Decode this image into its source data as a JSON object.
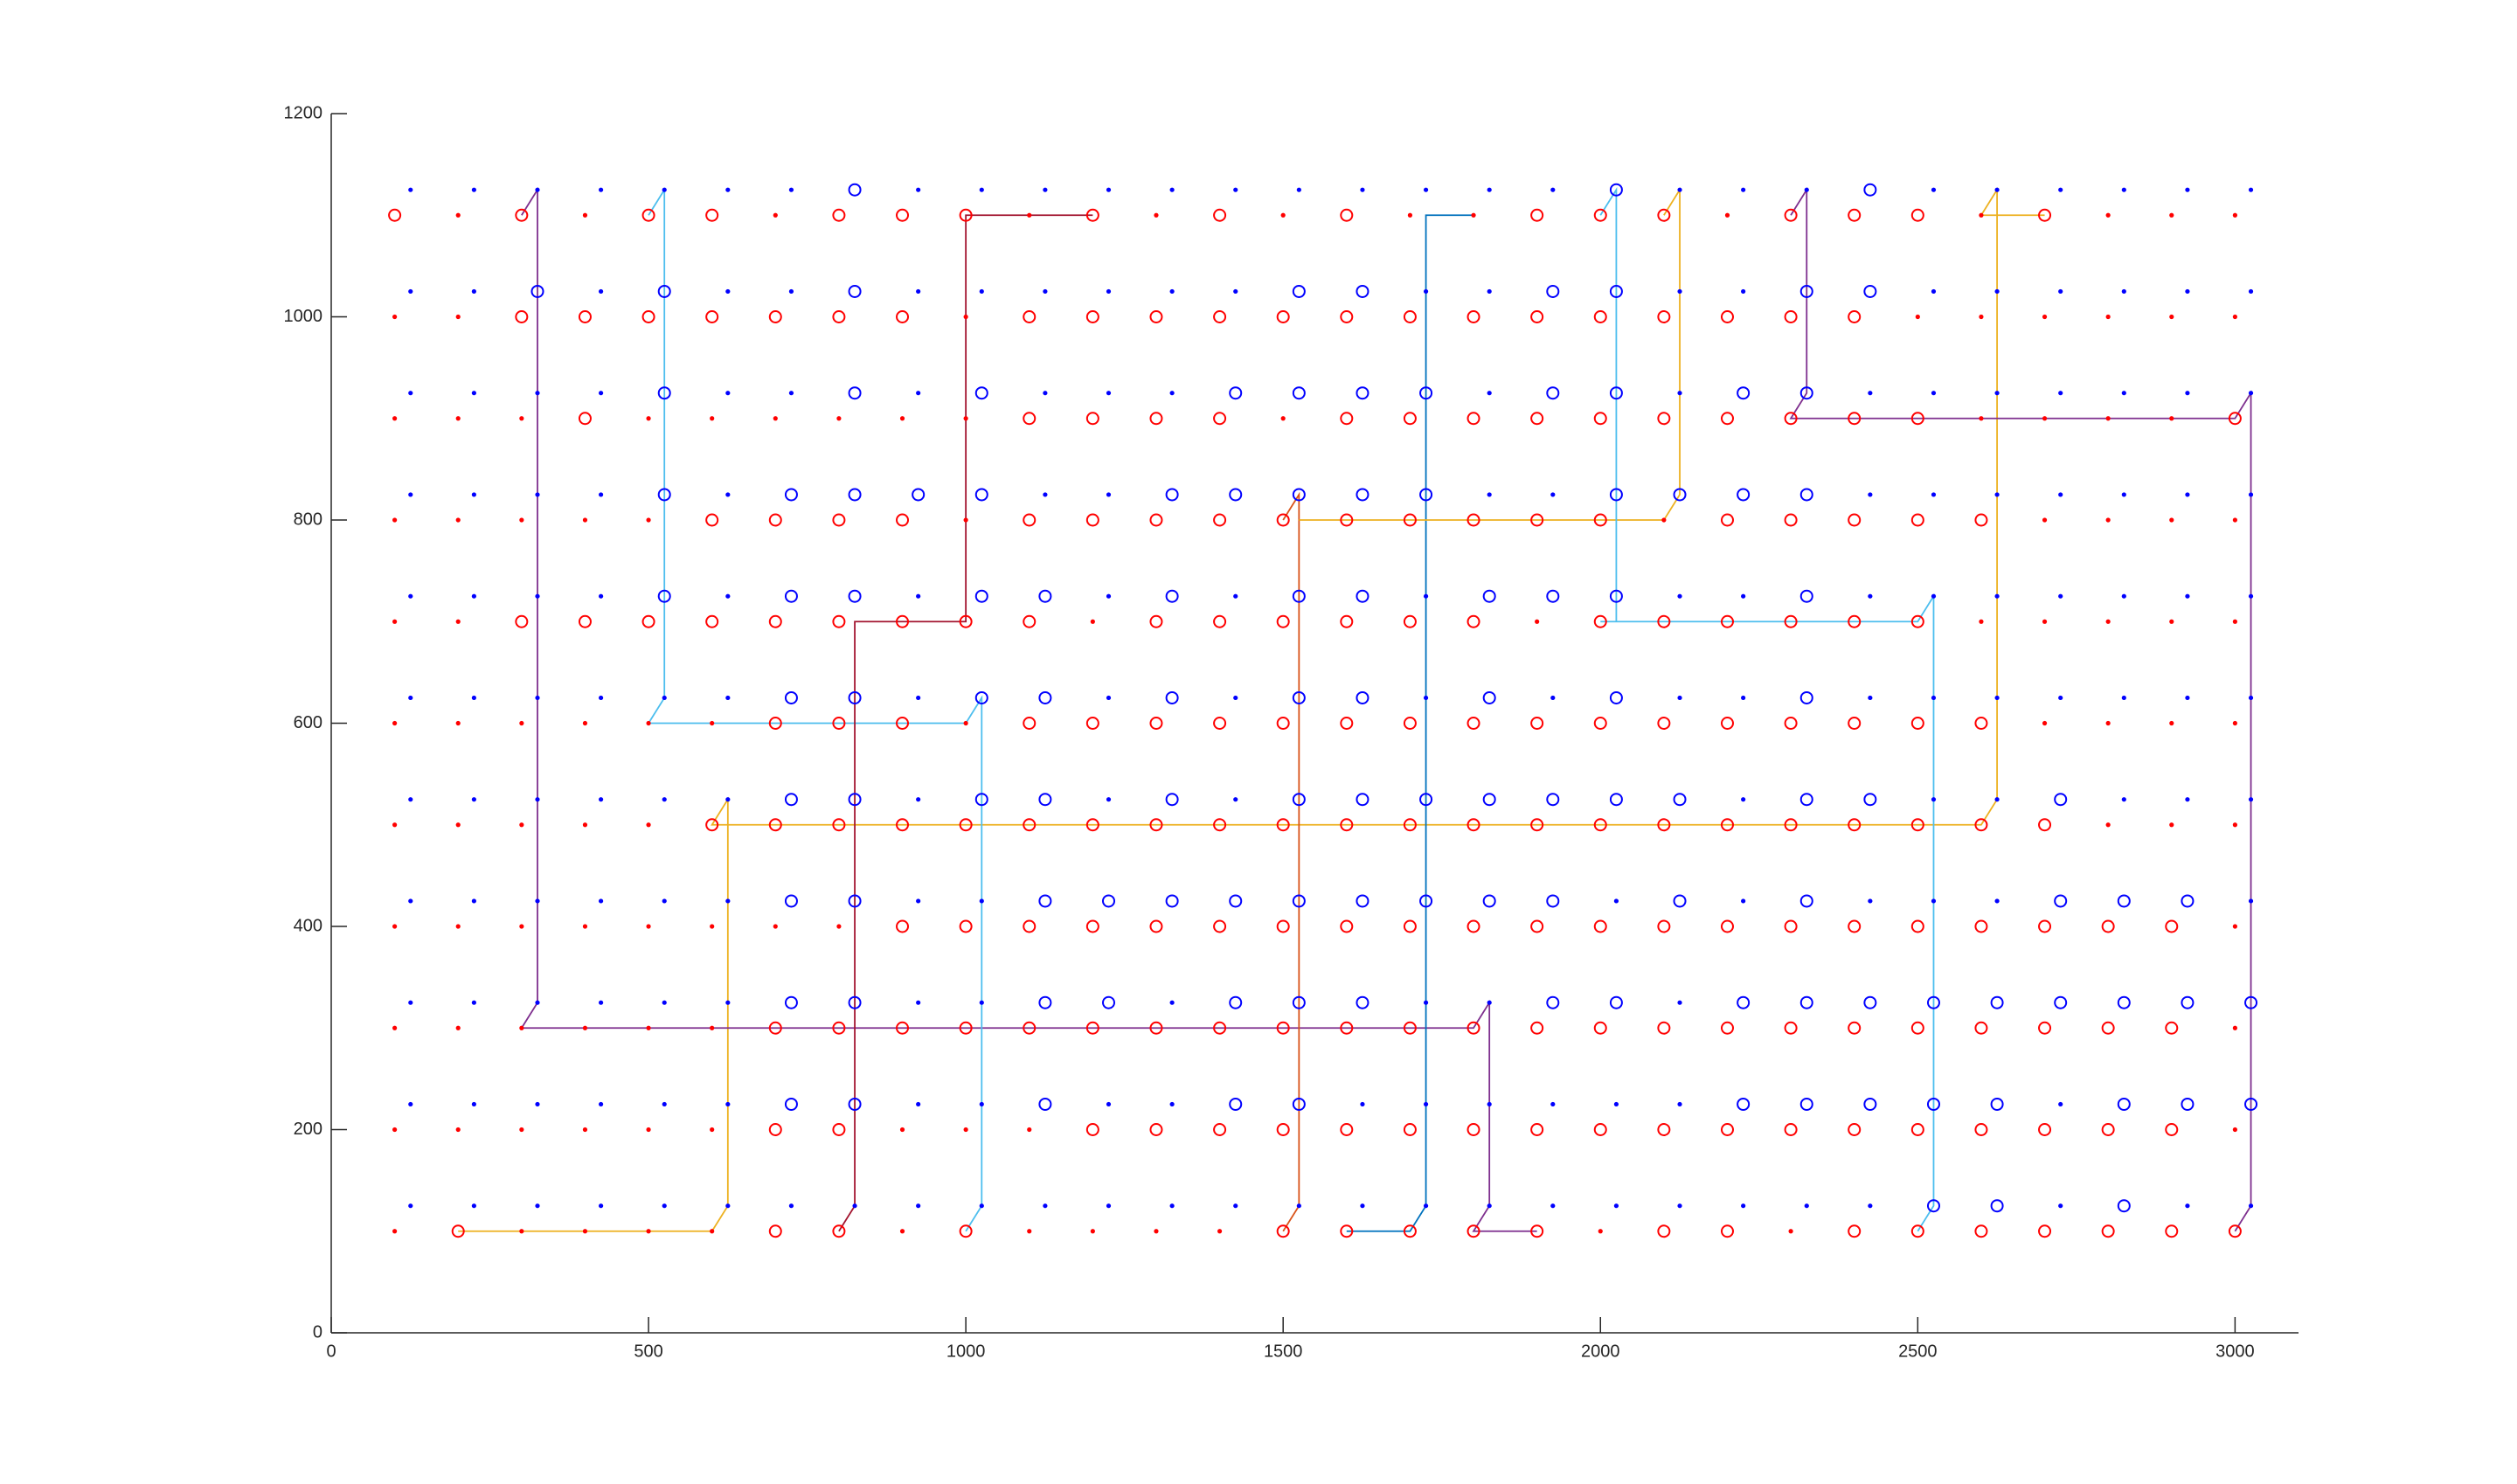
{
  "chart_data": {
    "type": "scatter",
    "xlim": [
      0,
      3100
    ],
    "ylim": [
      0,
      1200
    ],
    "xticks": [
      0,
      500,
      1000,
      1500,
      2000,
      2500,
      3000
    ],
    "yticks": [
      0,
      200,
      400,
      600,
      800,
      1000,
      1200
    ],
    "series": [
      {
        "color": "#ff0000",
        "marker": "o",
        "y": 1100,
        "x": [
          100,
          300,
          500,
          600,
          800,
          900,
          1000,
          1200,
          1400,
          1600,
          1900,
          2000,
          2100,
          2300,
          2400,
          2500,
          2700
        ]
      },
      {
        "color": "#ff0000",
        "marker": ".",
        "y": 1100,
        "x": [
          200,
          400,
          700,
          1100,
          1300,
          1500,
          1700,
          1800,
          2200,
          2600,
          2800,
          2900,
          3000
        ]
      },
      {
        "color": "#ff0000",
        "marker": "o",
        "y": 1000,
        "x": [
          300,
          400,
          500,
          600,
          700,
          800,
          900,
          1100,
          1200,
          1300,
          1400,
          1500,
          1600,
          1700,
          1800,
          1900,
          2000,
          2100,
          2200,
          2300,
          2400
        ]
      },
      {
        "color": "#ff0000",
        "marker": ".",
        "y": 1000,
        "x": [
          100,
          200,
          1000,
          2500,
          2600,
          2700,
          2800,
          2900,
          3000
        ]
      },
      {
        "color": "#ff0000",
        "marker": "o",
        "y": 900,
        "x": [
          400,
          1100,
          1200,
          1300,
          1400,
          1600,
          1700,
          1800,
          1900,
          2000,
          2100,
          2200,
          2300,
          2400,
          2500,
          3000
        ]
      },
      {
        "color": "#ff0000",
        "marker": ".",
        "y": 900,
        "x": [
          100,
          200,
          300,
          500,
          600,
          700,
          800,
          900,
          1000,
          1500,
          2600,
          2700,
          2800,
          2900
        ]
      },
      {
        "color": "#ff0000",
        "marker": "o",
        "y": 800,
        "x": [
          600,
          700,
          800,
          900,
          1100,
          1200,
          1300,
          1400,
          1500,
          1600,
          1700,
          1800,
          1900,
          2000,
          2200,
          2300,
          2400,
          2500,
          2600
        ]
      },
      {
        "color": "#ff0000",
        "marker": ".",
        "y": 800,
        "x": [
          100,
          200,
          300,
          400,
          500,
          1000,
          2100,
          2700,
          2800,
          2900,
          3000
        ]
      },
      {
        "color": "#ff0000",
        "marker": "o",
        "y": 700,
        "x": [
          300,
          400,
          500,
          600,
          700,
          800,
          900,
          1000,
          1100,
          1300,
          1400,
          1500,
          1600,
          1700,
          1800,
          2000,
          2100,
          2200,
          2300,
          2400,
          2500
        ]
      },
      {
        "color": "#ff0000",
        "marker": ".",
        "y": 700,
        "x": [
          100,
          200,
          1200,
          1900,
          2600,
          2700,
          2800,
          2900,
          3000
        ]
      },
      {
        "color": "#ff0000",
        "marker": "o",
        "y": 600,
        "x": [
          700,
          800,
          900,
          1100,
          1200,
          1300,
          1400,
          1500,
          1600,
          1700,
          1800,
          1900,
          2000,
          2100,
          2200,
          2300,
          2400,
          2500,
          2600
        ]
      },
      {
        "color": "#ff0000",
        "marker": ".",
        "y": 600,
        "x": [
          100,
          200,
          300,
          400,
          500,
          600,
          1000,
          2700,
          2800,
          2900,
          3000
        ]
      },
      {
        "color": "#ff0000",
        "marker": "o",
        "y": 500,
        "x": [
          600,
          700,
          800,
          900,
          1000,
          1100,
          1200,
          1300,
          1400,
          1500,
          1600,
          1700,
          1800,
          1900,
          2000,
          2100,
          2200,
          2300,
          2400,
          2500,
          2600,
          2700
        ]
      },
      {
        "color": "#ff0000",
        "marker": ".",
        "y": 500,
        "x": [
          100,
          200,
          300,
          400,
          500,
          2800,
          2900,
          3000
        ]
      },
      {
        "color": "#ff0000",
        "marker": "o",
        "y": 400,
        "x": [
          900,
          1000,
          1100,
          1200,
          1300,
          1400,
          1500,
          1600,
          1700,
          1800,
          1900,
          2000,
          2100,
          2200,
          2300,
          2400,
          2500,
          2600,
          2700,
          2800,
          2900
        ]
      },
      {
        "color": "#ff0000",
        "marker": ".",
        "y": 400,
        "x": [
          100,
          200,
          300,
          400,
          500,
          600,
          700,
          800,
          3000
        ]
      },
      {
        "color": "#ff0000",
        "marker": "o",
        "y": 300,
        "x": [
          700,
          800,
          900,
          1000,
          1100,
          1200,
          1300,
          1400,
          1500,
          1600,
          1700,
          1800,
          1900,
          2000,
          2100,
          2200,
          2300,
          2400,
          2500,
          2600,
          2700,
          2800,
          2900
        ]
      },
      {
        "color": "#ff0000",
        "marker": ".",
        "y": 300,
        "x": [
          100,
          200,
          300,
          400,
          500,
          600,
          3000
        ]
      },
      {
        "color": "#ff0000",
        "marker": "o",
        "y": 200,
        "x": [
          700,
          800,
          1200,
          1300,
          1400,
          1500,
          1600,
          1700,
          1800,
          1900,
          2000,
          2100,
          2200,
          2300,
          2400,
          2500,
          2600,
          2700,
          2800,
          2900
        ]
      },
      {
        "color": "#ff0000",
        "marker": ".",
        "y": 200,
        "x": [
          100,
          200,
          300,
          400,
          500,
          600,
          900,
          1000,
          1100,
          3000
        ]
      },
      {
        "color": "#ff0000",
        "marker": "o",
        "y": 100,
        "x": [
          200,
          700,
          800,
          1000,
          1500,
          1600,
          1700,
          1800,
          1900,
          2100,
          2200,
          2400,
          2500,
          2600,
          2700,
          2800,
          2900,
          3000
        ]
      },
      {
        "color": "#ff0000",
        "marker": ".",
        "y": 100,
        "x": [
          100,
          300,
          400,
          500,
          600,
          900,
          1100,
          1200,
          1300,
          1400,
          2000,
          2300
        ]
      },
      {
        "color": "#0000ff",
        "marker": "o",
        "y": 1125,
        "x": [
          825,
          2025,
          2425
        ]
      },
      {
        "color": "#0000ff",
        "marker": ".",
        "y": 1125,
        "x": [
          125,
          225,
          325,
          425,
          525,
          625,
          725,
          925,
          1025,
          1125,
          1225,
          1325,
          1425,
          1525,
          1625,
          1725,
          1825,
          1925,
          2125,
          2225,
          2325,
          2525,
          2625,
          2725,
          2825,
          2925,
          3025
        ]
      },
      {
        "color": "#0000ff",
        "marker": "o",
        "y": 1025,
        "x": [
          325,
          525,
          825,
          1525,
          1625,
          1925,
          2025,
          2325,
          2425
        ]
      },
      {
        "color": "#0000ff",
        "marker": ".",
        "y": 1025,
        "x": [
          125,
          225,
          425,
          625,
          725,
          925,
          1025,
          1125,
          1225,
          1325,
          1425,
          1725,
          1825,
          2125,
          2225,
          2525,
          2625,
          2725,
          2825,
          2925,
          3025
        ]
      },
      {
        "color": "#0000ff",
        "marker": "o",
        "y": 925,
        "x": [
          525,
          825,
          1025,
          1425,
          1525,
          1625,
          1725,
          1925,
          2025,
          2225,
          2325
        ]
      },
      {
        "color": "#0000ff",
        "marker": ".",
        "y": 925,
        "x": [
          125,
          225,
          325,
          425,
          625,
          725,
          925,
          1125,
          1225,
          1325,
          1825,
          2125,
          2425,
          2525,
          2625,
          2725,
          2825,
          2925,
          3025
        ]
      },
      {
        "color": "#0000ff",
        "marker": "o",
        "y": 825,
        "x": [
          525,
          725,
          825,
          925,
          1025,
          1325,
          1425,
          1525,
          1625,
          1725,
          2025,
          2125,
          2225,
          2325
        ]
      },
      {
        "color": "#0000ff",
        "marker": ".",
        "y": 825,
        "x": [
          125,
          225,
          325,
          425,
          625,
          1125,
          1225,
          1825,
          1925,
          2425,
          2525,
          2625,
          2725,
          2825,
          2925,
          3025
        ]
      },
      {
        "color": "#0000ff",
        "marker": "o",
        "y": 725,
        "x": [
          525,
          725,
          825,
          1025,
          1125,
          1325,
          1525,
          1625,
          1825,
          1925,
          2025,
          2325
        ]
      },
      {
        "color": "#0000ff",
        "marker": ".",
        "y": 725,
        "x": [
          125,
          225,
          325,
          425,
          625,
          925,
          1225,
          1425,
          1725,
          2125,
          2225,
          2425,
          2525,
          2625,
          2725,
          2825,
          2925,
          3025
        ]
      },
      {
        "color": "#0000ff",
        "marker": "o",
        "y": 625,
        "x": [
          725,
          825,
          1025,
          1125,
          1325,
          1525,
          1625,
          1825,
          2025,
          2325
        ]
      },
      {
        "color": "#0000ff",
        "marker": ".",
        "y": 625,
        "x": [
          125,
          225,
          325,
          425,
          525,
          625,
          925,
          1225,
          1425,
          1725,
          1925,
          2125,
          2225,
          2425,
          2525,
          2625,
          2725,
          2825,
          2925,
          3025
        ]
      },
      {
        "color": "#0000ff",
        "marker": "o",
        "y": 525,
        "x": [
          725,
          825,
          1025,
          1125,
          1325,
          1525,
          1625,
          1725,
          1825,
          1925,
          2025,
          2125,
          2325,
          2425,
          2725
        ]
      },
      {
        "color": "#0000ff",
        "marker": ".",
        "y": 525,
        "x": [
          125,
          225,
          325,
          425,
          525,
          625,
          925,
          1225,
          1425,
          2225,
          2525,
          2625,
          2825,
          2925,
          3025
        ]
      },
      {
        "color": "#0000ff",
        "marker": "o",
        "y": 425,
        "x": [
          725,
          825,
          1125,
          1225,
          1325,
          1425,
          1525,
          1625,
          1725,
          1825,
          1925,
          2125,
          2325,
          2725,
          2825,
          2925
        ]
      },
      {
        "color": "#0000ff",
        "marker": ".",
        "y": 425,
        "x": [
          125,
          225,
          325,
          425,
          525,
          625,
          925,
          1025,
          2025,
          2225,
          2425,
          2525,
          2625,
          3025
        ]
      },
      {
        "color": "#0000ff",
        "marker": "o",
        "y": 325,
        "x": [
          725,
          825,
          1125,
          1225,
          1425,
          1525,
          1625,
          1925,
          2025,
          2225,
          2325,
          2425,
          2525,
          2625,
          2725,
          2825,
          2925,
          3025
        ]
      },
      {
        "color": "#0000ff",
        "marker": ".",
        "y": 325,
        "x": [
          125,
          225,
          325,
          425,
          525,
          625,
          925,
          1025,
          1325,
          1725,
          1825,
          2125
        ]
      },
      {
        "color": "#0000ff",
        "marker": "o",
        "y": 225,
        "x": [
          725,
          825,
          1125,
          1425,
          1525,
          2225,
          2325,
          2425,
          2525,
          2625,
          2825,
          2925,
          3025
        ]
      },
      {
        "color": "#0000ff",
        "marker": ".",
        "y": 225,
        "x": [
          125,
          225,
          325,
          425,
          525,
          625,
          925,
          1025,
          1225,
          1325,
          1625,
          1725,
          1825,
          1925,
          2025,
          2125,
          2725
        ]
      },
      {
        "color": "#0000ff",
        "marker": "o",
        "y": 125,
        "x": [
          2525,
          2625,
          2825
        ]
      },
      {
        "color": "#0000ff",
        "marker": ".",
        "y": 125,
        "x": [
          125,
          225,
          325,
          425,
          525,
          625,
          725,
          825,
          925,
          1025,
          1125,
          1225,
          1325,
          1425,
          1525,
          1625,
          1725,
          1825,
          1925,
          2025,
          2125,
          2225,
          2325,
          2425,
          2725,
          2925,
          3025
        ]
      }
    ],
    "lines": [
      {
        "color": "#edb120",
        "x": [
          200,
          600,
          625,
          625,
          600,
          2600,
          2625,
          2625,
          2600,
          2700
        ],
        "values": [
          100,
          100,
          125,
          525,
          500,
          500,
          525,
          1125,
          1100,
          1100
        ]
      },
      {
        "color": "#7e2f8e",
        "x": [
          300,
          325,
          325,
          300,
          1800,
          1825,
          1825,
          1800,
          1900
        ],
        "values": [
          1100,
          1125,
          325,
          300,
          300,
          325,
          125,
          100,
          100
        ]
      },
      {
        "color": "#4dbeee",
        "x": [
          500,
          525,
          525,
          500,
          1000,
          1025,
          1025,
          1000
        ],
        "values": [
          1100,
          1125,
          625,
          600,
          600,
          625,
          125,
          100
        ]
      },
      {
        "color": "#a2142f",
        "x": [
          1200,
          1000,
          1000,
          825,
          825,
          800
        ],
        "values": [
          1100,
          1100,
          700,
          700,
          125,
          100
        ]
      },
      {
        "color": "#0072bd",
        "x": [
          1800,
          1725,
          1725,
          1700,
          1600
        ],
        "values": [
          1100,
          1100,
          125,
          100,
          100
        ]
      },
      {
        "color": "#d95319",
        "x": [
          1500,
          1525,
          1525,
          1500
        ],
        "values": [
          800,
          825,
          125,
          100
        ]
      },
      {
        "color": "#edb120",
        "x": [
          1525,
          2100,
          2125,
          2125,
          2100
        ],
        "values": [
          800,
          800,
          825,
          1125,
          1100
        ]
      },
      {
        "color": "#4dbeee",
        "x": [
          2000,
          2025,
          2025,
          2000,
          2500,
          2525,
          2525,
          2500
        ],
        "values": [
          1100,
          1125,
          700,
          700,
          700,
          725,
          125,
          100
        ]
      },
      {
        "color": "#7e2f8e",
        "x": [
          2300,
          2325,
          2325,
          2300,
          3000,
          3025,
          3025,
          3000
        ],
        "values": [
          1100,
          1125,
          925,
          900,
          900,
          925,
          125,
          100
        ]
      }
    ]
  }
}
